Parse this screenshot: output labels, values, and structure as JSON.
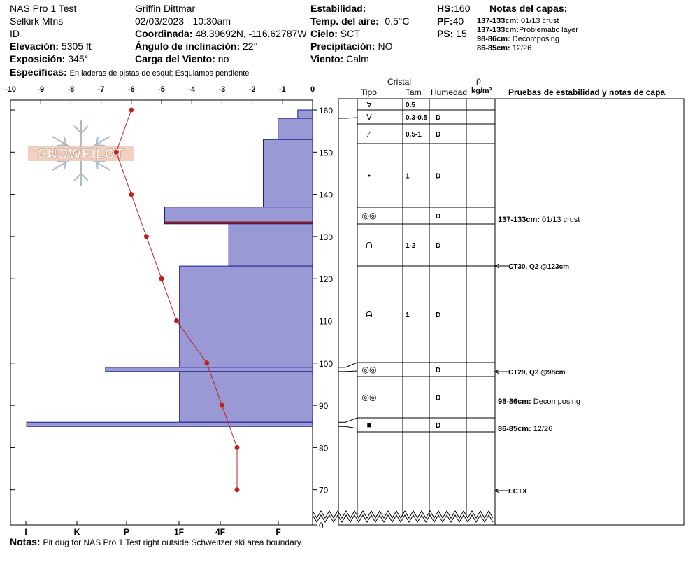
{
  "header": {
    "pit_name": "NAS Pro 1 Test",
    "range": "Selkirk Mtns",
    "state": "ID",
    "observer": "Griffin Dittmar",
    "datetime": "02/03/2023 - 10:30am",
    "elevation_label": "Elevación:",
    "elevation_value": "5305 ft",
    "aspect_label": "Exposición:",
    "aspect_value": "345°",
    "specifics_label": "Especificas:",
    "specifics_value": "En laderas de pistas de esquí; Esquiamos pendiente",
    "coord_label": "Coordinada:",
    "coord_value": "48.39692N, -116.62787W",
    "slope_label": "Ángulo de inclinación:",
    "slope_value": "22°",
    "wind_load_label": "Carga del Viento:",
    "wind_load_value": "no",
    "stability_label": "Estabilidad:",
    "air_temp_label": "Temp. del aire:",
    "air_temp_value": "-0.5°C",
    "sky_label": "Cielo:",
    "sky_value": "SCT",
    "precip_label": "Precipitación:",
    "precip_value": "NO",
    "wind_label": "Viento:",
    "wind_value": "Calm",
    "hs_label": "HS:",
    "hs_value": "160",
    "pf_label": "PF:",
    "pf_value": "40",
    "ps_label": "PS:",
    "ps_value": "15",
    "layer_notes_title": "Notas del capas:",
    "layer_notes": [
      {
        "range": "137-133cm:",
        "text": "01/13 crust"
      },
      {
        "range": "137-133cm:",
        "text": "Problematic layer"
      },
      {
        "range": "98-86cm:",
        "text": "Decomposing"
      },
      {
        "range": "86-85cm:",
        "text": "12/26"
      }
    ]
  },
  "logo_text": "SNOWPILOT",
  "notes_label": "Notas:",
  "notes_value": "Pit dug for NAS Pro 1 Test right outside Schweitzer ski area boundary.",
  "table_headers": {
    "cristal": "Cristal",
    "tipo": "Tipo",
    "tam": "Tam",
    "humedad": "Humedad",
    "rho": "ρ",
    "density_unit": "kg/m³",
    "tests": "Pruebas de estabilidad y notas de capa"
  },
  "colors": {
    "hardness_fill": "#9999d6",
    "hardness_stroke": "#1a1a8c",
    "temp_line": "#c0201c",
    "crust_line": "#8b1a1a"
  },
  "chart_data": {
    "type": "snow_profile",
    "temp_axis": {
      "ticks": [
        "-10",
        "-9",
        "-8",
        "-7",
        "-6",
        "-5",
        "-4",
        "-3",
        "-2",
        "-1",
        "0"
      ],
      "range": [
        -10,
        0
      ]
    },
    "height_axis": {
      "ticks": [
        "160",
        "150",
        "140",
        "130",
        "120",
        "110",
        "100",
        "90",
        "80",
        "70",
        "0"
      ],
      "range": [
        0,
        160
      ]
    },
    "hardness_axis": {
      "ticks": [
        "I",
        "K",
        "P",
        "1F",
        "4F",
        "F"
      ]
    },
    "temperature": [
      {
        "h": 160,
        "t": -6.0
      },
      {
        "h": 150,
        "t": -6.5
      },
      {
        "h": 140,
        "t": -6.0
      },
      {
        "h": 130,
        "t": -5.5
      },
      {
        "h": 120,
        "t": -5.0
      },
      {
        "h": 110,
        "t": -4.5
      },
      {
        "h": 100,
        "t": -3.5
      },
      {
        "h": 90,
        "t": -3.0
      },
      {
        "h": 80,
        "t": -2.5
      },
      {
        "h": 70,
        "t": -2.5
      }
    ],
    "hardness_layers": [
      {
        "top": 160,
        "bottom": 158,
        "hardness_index": 0.3
      },
      {
        "top": 158,
        "bottom": 153,
        "hardness_index": 0.7
      },
      {
        "top": 153,
        "bottom": 137,
        "hardness_index": 1.0
      },
      {
        "top": 137,
        "bottom": 133,
        "hardness_index": 3.0
      },
      {
        "top": 133,
        "bottom": 123,
        "hardness_index": 1.7
      },
      {
        "top": 123,
        "bottom": 99,
        "hardness_index": 2.7
      },
      {
        "top": 99,
        "bottom": 98,
        "hardness_index": 4.2
      },
      {
        "top": 98,
        "bottom": 86,
        "hardness_index": 2.7
      },
      {
        "top": 86,
        "bottom": 85,
        "hardness_index": 5.8
      }
    ],
    "crust_line_height": 133.3,
    "layers": [
      {
        "top": 160,
        "bottom": 158,
        "tipo": "∀",
        "tam": "0.5",
        "humedad": ""
      },
      {
        "top": 158,
        "bottom": 153,
        "tipo": "∀",
        "tam": "0.3-0.5",
        "humedad": "D"
      },
      {
        "top": 153,
        "bottom": 137,
        "tipo": "⁄",
        "tam": "0.5-1",
        "humedad": "D"
      },
      {
        "top": 137,
        "bottom": 133,
        "tipo": "•",
        "tam": "1",
        "humedad": "D"
      },
      {
        "top": 133,
        "bottom": 123,
        "tipo": "◎◎",
        "tam": "",
        "humedad": "D"
      },
      {
        "top": 123,
        "bottom": 99,
        "tipo": "ᗩ",
        "tam": "1-2",
        "humedad": "D"
      },
      {
        "top": 99,
        "bottom": 98,
        "tipo": "ᗩ",
        "tam": "1",
        "humedad": "D"
      },
      {
        "top": 98,
        "bottom": 86,
        "tipo": "◎◎",
        "tam": "",
        "humedad": "D"
      },
      {
        "top": 86,
        "bottom": 85,
        "tipo": "◎◎",
        "tam": "",
        "humedad": "D"
      },
      {
        "top": 85,
        "bottom": 0,
        "tipo": "■",
        "tam": "",
        "humedad": "D"
      }
    ],
    "annotations": [
      {
        "h": 135,
        "text": "137-133cm: 01/13 crust",
        "arrow": false
      },
      {
        "h": 123,
        "text": "CT30, Q2 @123cm",
        "arrow": true
      },
      {
        "h": 98,
        "text": "CT29, Q2 @98cm",
        "arrow": true
      },
      {
        "h": 92,
        "text": "98-86cm: Decomposing",
        "arrow": false
      },
      {
        "h": 85.5,
        "text": "86-85cm: 12/26",
        "arrow": false
      },
      {
        "h": 70,
        "text": "ECTX",
        "arrow": true
      }
    ]
  }
}
